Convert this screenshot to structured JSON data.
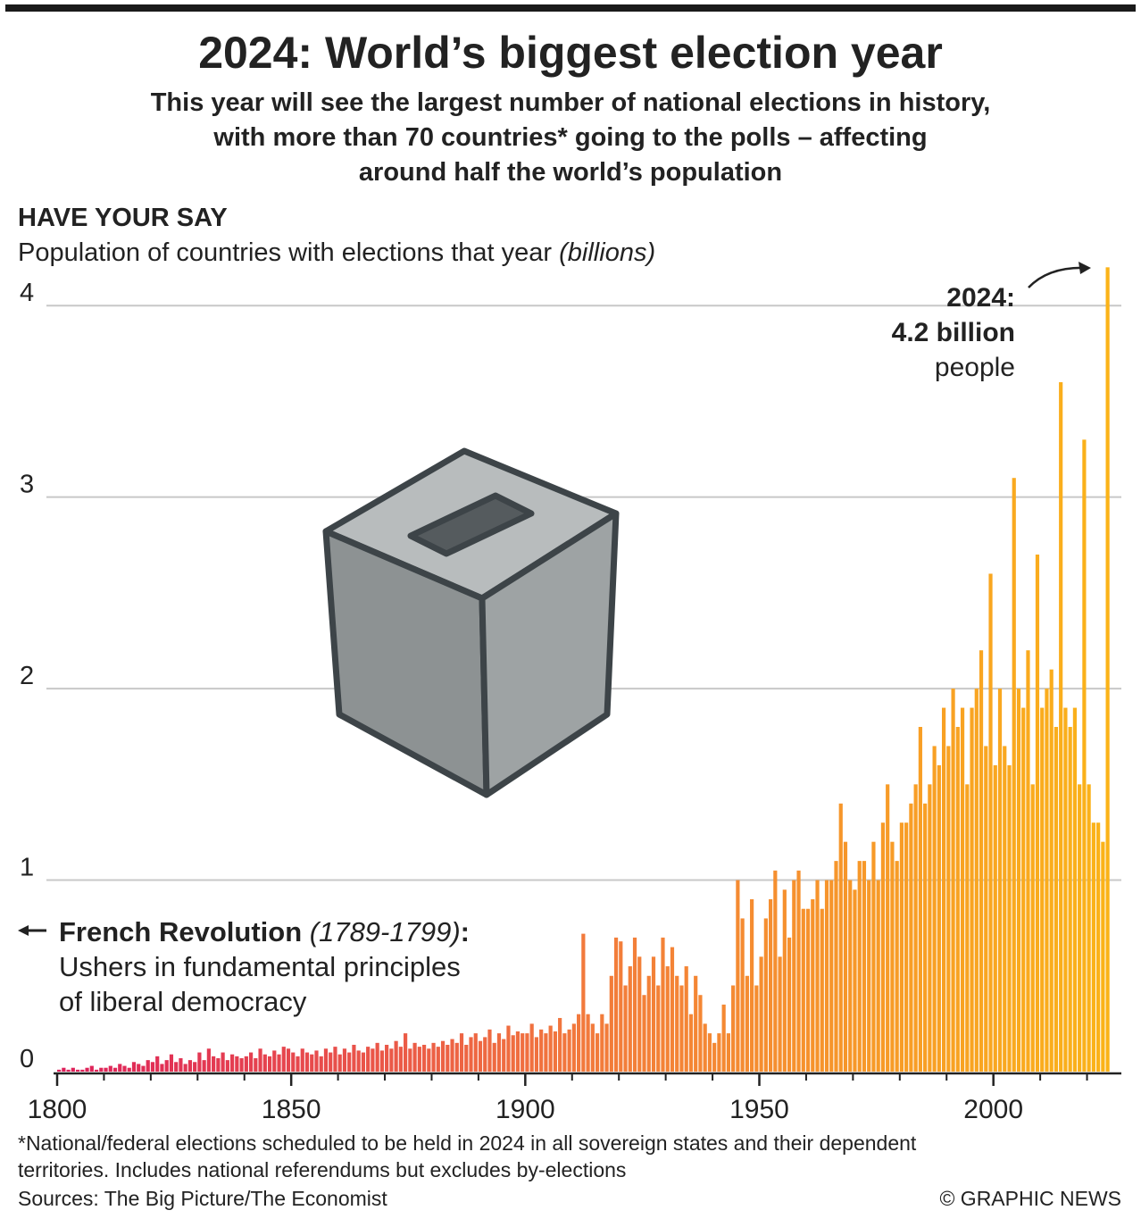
{
  "chart_data": {
    "type": "bar",
    "title": "2024: World’s biggest election year",
    "subtitle": [
      "This year will see the largest number of national elections in history,",
      "with more than 70 countries* going to the polls – affecting",
      "around half the world’s population"
    ],
    "section_heading": "HAVE YOUR SAY",
    "axis_label": "Population of countries with elections that year",
    "axis_unit": "(billions)",
    "annotations": {
      "peak": [
        "2024:",
        "4.2 billion",
        "people"
      ],
      "french_revolution": {
        "name": "French Revolution",
        "dates": "(1789-1799)",
        "colon": ":",
        "lines": [
          "Ushers in fundamental principles",
          "of liberal democracy"
        ]
      }
    },
    "footnote": [
      "*National/federal elections scheduled to be held in 2024 in all sovereign states and their dependent",
      "territories. Includes national referendums but excludes by-elections"
    ],
    "source": "Sources: The Big Picture/The Economist",
    "credit": "© GRAPHIC NEWS",
    "gradient": [
      "#dd1f5b",
      "#f27a3c",
      "#fbb418"
    ],
    "xlim": [
      1800,
      2026
    ],
    "ylim": [
      0,
      4.5
    ],
    "xticks": [
      1800,
      1850,
      1900,
      1950,
      2000
    ],
    "xminorticks": [
      1810,
      1820,
      1830,
      1840,
      1860,
      1870,
      1880,
      1890,
      1910,
      1920,
      1930,
      1940,
      1960,
      1970,
      1980,
      1990,
      2010,
      2020
    ],
    "yticks": [
      0,
      1,
      2,
      3,
      4
    ],
    "grid": true,
    "x": [
      1800,
      1801,
      1802,
      1803,
      1804,
      1805,
      1806,
      1807,
      1808,
      1809,
      1810,
      1811,
      1812,
      1813,
      1814,
      1815,
      1816,
      1817,
      1818,
      1819,
      1820,
      1821,
      1822,
      1823,
      1824,
      1825,
      1826,
      1827,
      1828,
      1829,
      1830,
      1831,
      1832,
      1833,
      1834,
      1835,
      1836,
      1837,
      1838,
      1839,
      1840,
      1841,
      1842,
      1843,
      1844,
      1845,
      1846,
      1847,
      1848,
      1849,
      1850,
      1851,
      1852,
      1853,
      1854,
      1855,
      1856,
      1857,
      1858,
      1859,
      1860,
      1861,
      1862,
      1863,
      1864,
      1865,
      1866,
      1867,
      1868,
      1869,
      1870,
      1871,
      1872,
      1873,
      1874,
      1875,
      1876,
      1877,
      1878,
      1879,
      1880,
      1881,
      1882,
      1883,
      1884,
      1885,
      1886,
      1887,
      1888,
      1889,
      1890,
      1891,
      1892,
      1893,
      1894,
      1895,
      1896,
      1897,
      1898,
      1899,
      1900,
      1901,
      1902,
      1903,
      1904,
      1905,
      1906,
      1907,
      1908,
      1909,
      1910,
      1911,
      1912,
      1913,
      1914,
      1915,
      1916,
      1917,
      1918,
      1919,
      1920,
      1921,
      1922,
      1923,
      1924,
      1925,
      1926,
      1927,
      1928,
      1929,
      1930,
      1931,
      1932,
      1933,
      1934,
      1935,
      1936,
      1937,
      1938,
      1939,
      1940,
      1941,
      1942,
      1943,
      1944,
      1945,
      1946,
      1947,
      1948,
      1949,
      1950,
      1951,
      1952,
      1953,
      1954,
      1955,
      1956,
      1957,
      1958,
      1959,
      1960,
      1961,
      1962,
      1963,
      1964,
      1965,
      1966,
      1967,
      1968,
      1969,
      1970,
      1971,
      1972,
      1973,
      1974,
      1975,
      1976,
      1977,
      1978,
      1979,
      1980,
      1981,
      1982,
      1983,
      1984,
      1985,
      1986,
      1987,
      1988,
      1989,
      1990,
      1991,
      1992,
      1993,
      1994,
      1995,
      1996,
      1997,
      1998,
      1999,
      2000,
      2001,
      2002,
      2003,
      2004,
      2005,
      2006,
      2007,
      2008,
      2009,
      2010,
      2011,
      2012,
      2013,
      2014,
      2015,
      2016,
      2017,
      2018,
      2019,
      2020,
      2021,
      2022,
      2023,
      2024
    ],
    "values": [
      0.01,
      0.02,
      0.01,
      0.02,
      0.01,
      0.01,
      0.02,
      0.03,
      0.01,
      0.02,
      0.02,
      0.03,
      0.02,
      0.04,
      0.03,
      0.02,
      0.05,
      0.04,
      0.03,
      0.06,
      0.05,
      0.08,
      0.04,
      0.06,
      0.09,
      0.05,
      0.07,
      0.04,
      0.06,
      0.05,
      0.1,
      0.06,
      0.12,
      0.08,
      0.07,
      0.1,
      0.06,
      0.09,
      0.08,
      0.07,
      0.08,
      0.1,
      0.07,
      0.12,
      0.09,
      0.08,
      0.11,
      0.09,
      0.13,
      0.12,
      0.1,
      0.08,
      0.12,
      0.1,
      0.09,
      0.11,
      0.08,
      0.12,
      0.1,
      0.13,
      0.09,
      0.12,
      0.1,
      0.14,
      0.11,
      0.1,
      0.13,
      0.12,
      0.15,
      0.11,
      0.14,
      0.12,
      0.16,
      0.13,
      0.2,
      0.12,
      0.15,
      0.13,
      0.14,
      0.12,
      0.15,
      0.13,
      0.16,
      0.14,
      0.17,
      0.15,
      0.2,
      0.14,
      0.18,
      0.2,
      0.16,
      0.18,
      0.22,
      0.15,
      0.2,
      0.17,
      0.24,
      0.19,
      0.21,
      0.2,
      0.2,
      0.25,
      0.18,
      0.22,
      0.2,
      0.24,
      0.21,
      0.28,
      0.2,
      0.22,
      0.25,
      0.3,
      0.72,
      0.3,
      0.25,
      0.2,
      0.3,
      0.25,
      0.5,
      0.7,
      0.68,
      0.45,
      0.55,
      0.7,
      0.6,
      0.4,
      0.5,
      0.6,
      0.45,
      0.7,
      0.55,
      0.65,
      0.5,
      0.45,
      0.55,
      0.3,
      0.5,
      0.4,
      0.25,
      0.2,
      0.15,
      0.2,
      0.35,
      0.2,
      0.45,
      1.0,
      0.8,
      0.5,
      0.9,
      0.45,
      0.6,
      0.8,
      0.9,
      1.05,
      0.6,
      0.95,
      0.7,
      1.0,
      1.05,
      0.85,
      0.85,
      0.9,
      1.0,
      0.85,
      1.0,
      1.0,
      1.1,
      1.4,
      1.2,
      1.0,
      0.95,
      1.1,
      1.1,
      1.0,
      1.2,
      1.0,
      1.3,
      1.5,
      1.2,
      1.1,
      1.3,
      1.3,
      1.4,
      1.5,
      1.8,
      1.4,
      1.5,
      1.7,
      1.6,
      1.9,
      1.7,
      2.0,
      1.8,
      1.9,
      1.5,
      1.9,
      2.0,
      2.2,
      1.7,
      2.6,
      1.6,
      2.0,
      1.7,
      1.6,
      3.1,
      2.0,
      1.9,
      2.2,
      1.5,
      2.7,
      1.9,
      2.0,
      2.1,
      1.8,
      3.6,
      1.9,
      1.8,
      1.9,
      1.5,
      3.3,
      1.5,
      1.3,
      1.3,
      1.2,
      4.2
    ]
  }
}
